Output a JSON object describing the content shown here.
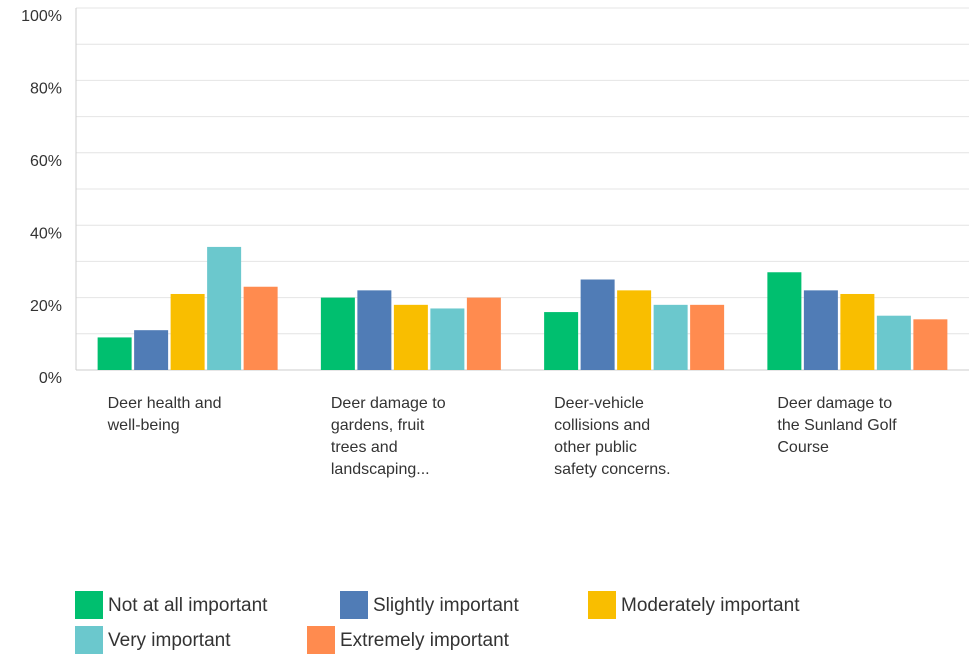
{
  "chart_data": {
    "type": "bar",
    "categories": [
      [
        "Deer health and",
        "well-being"
      ],
      [
        "Deer damage to",
        "gardens, fruit",
        "trees and",
        "landscaping..."
      ],
      [
        "Deer-vehicle",
        "collisions and",
        "other public",
        "safety concerns."
      ],
      [
        "Deer damage to",
        "the Sunland Golf",
        "Course"
      ]
    ],
    "series": [
      {
        "name": "Not at all important",
        "color": "#00bf6f",
        "values": [
          9,
          20,
          16,
          27
        ]
      },
      {
        "name": "Slightly important",
        "color": "#507cb6",
        "values": [
          11,
          22,
          25,
          22
        ]
      },
      {
        "name": "Moderately important",
        "color": "#f9be00",
        "values": [
          21,
          18,
          22,
          21
        ]
      },
      {
        "name": "Very important",
        "color": "#6bc8cd",
        "values": [
          34,
          17,
          18,
          15
        ]
      },
      {
        "name": "Extremely important",
        "color": "#ff8b4f",
        "values": [
          23,
          20,
          18,
          14
        ]
      }
    ],
    "ylim": [
      0,
      100
    ],
    "yticks": [
      {
        "value": 0,
        "label": "0%"
      },
      {
        "value": 20,
        "label": "20%"
      },
      {
        "value": 40,
        "label": "40%"
      },
      {
        "value": 60,
        "label": "60%"
      },
      {
        "value": 80,
        "label": "80%"
      },
      {
        "value": 100,
        "label": "100%"
      }
    ],
    "minor_yticks": [
      10,
      30,
      50,
      70,
      90
    ],
    "grid": true,
    "legend": "bottom"
  }
}
